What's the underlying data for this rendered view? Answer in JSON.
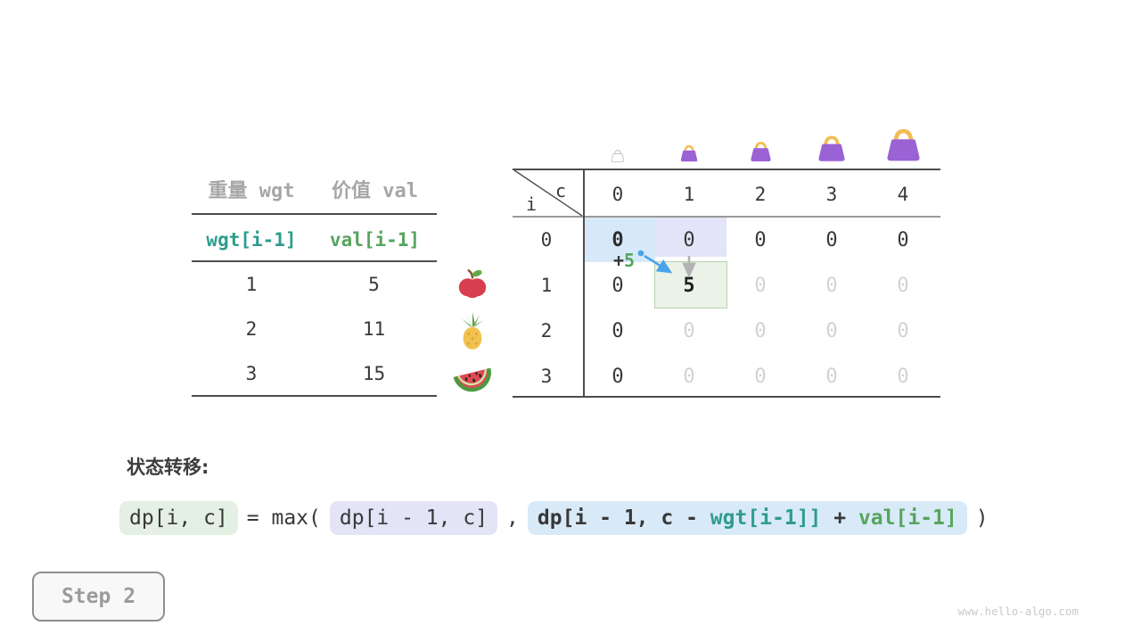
{
  "page": {
    "watermark": "www.hello-algo.com"
  },
  "step_button": {
    "label": "Step 2"
  },
  "items_table": {
    "column_titles": {
      "weight": "重量 wgt",
      "value": "价值 val"
    },
    "code_headers": {
      "weight": "wgt[i-1]",
      "value": "val[i-1]"
    },
    "rows": [
      {
        "wgt": "1",
        "val": "5",
        "item_icon": "apple"
      },
      {
        "wgt": "2",
        "val": "11",
        "item_icon": "pineapple"
      },
      {
        "wgt": "3",
        "val": "15",
        "item_icon": "watermelon"
      }
    ]
  },
  "dp_table": {
    "corner": {
      "col_axis": "c",
      "row_axis": "i"
    },
    "col_headers": [
      "0",
      "1",
      "2",
      "3",
      "4"
    ],
    "row_headers": [
      "0",
      "1",
      "2",
      "3"
    ],
    "cells": [
      [
        "0",
        "0",
        "0",
        "0",
        "0"
      ],
      [
        "0",
        "5",
        "0",
        "0",
        "0"
      ],
      [
        "0",
        "0",
        "0",
        "0",
        "0"
      ],
      [
        "0",
        "0",
        "0",
        "0",
        "0"
      ]
    ],
    "cell_styles": [
      [
        "bold",
        "normal",
        "normal",
        "normal",
        "normal"
      ],
      [
        "normal",
        "result",
        "faded",
        "faded",
        "faded"
      ],
      [
        "normal",
        "faded",
        "faded",
        "faded",
        "faded"
      ],
      [
        "normal",
        "faded",
        "faded",
        "faded",
        "faded"
      ]
    ],
    "capacity_icons": [
      "bag-empty",
      "bag-small",
      "bag-medium",
      "bag-large",
      "bag-xlarge"
    ],
    "annotation": {
      "operator": "+",
      "value": "5"
    }
  },
  "formula": {
    "label": "状态转移:",
    "lhs": "dp[i, c]",
    "eq_max": "= max(",
    "arg1": "dp[i - 1, c]",
    "comma": ",",
    "arg2": {
      "prefix": "dp[i - 1, c - ",
      "wgt": "wgt[i-1]]",
      "plus": " + ",
      "val": "val[i-1]"
    },
    "close": ")"
  },
  "colors": {
    "teal": "#2f9c8e",
    "green": "#57a45e",
    "dark": "#383838",
    "muted": "#a7a7a7",
    "faded": "#d2d2d2",
    "hl_blue": "#d7e9f8",
    "hl_lavender": "#e3e4f7",
    "hl_green_bg": "#ebf2e7",
    "hl_green_border": "#b6d0ac",
    "pill_green": "#e4f0e3",
    "pill_lavender": "#e4e4f7",
    "pill_blue": "#d8eaf8",
    "arrow_blue": "#4aa3e8",
    "arrow_gray": "#b3b3b3",
    "bag_purple": "#9b62d6",
    "bag_handle": "#f2bd52"
  }
}
